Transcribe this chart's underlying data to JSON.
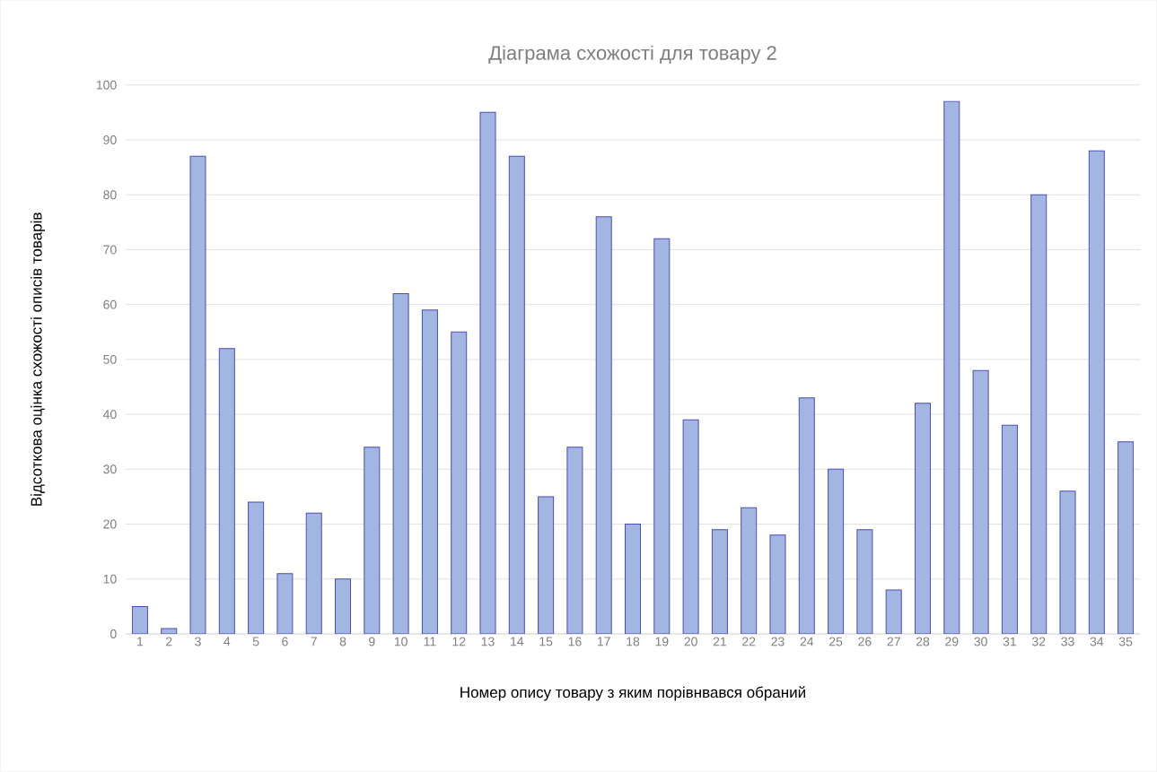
{
  "chart_data": {
    "type": "bar",
    "title": "Діаграма схожості для товару 2",
    "xlabel": "Номер опису товару з яким порівнвався обраний",
    "ylabel": "Відсоткова оцінка схожості описів товарів",
    "categories": [
      "1",
      "2",
      "3",
      "4",
      "5",
      "6",
      "7",
      "8",
      "9",
      "10",
      "11",
      "12",
      "13",
      "14",
      "15",
      "16",
      "17",
      "18",
      "19",
      "20",
      "21",
      "22",
      "23",
      "24",
      "25",
      "26",
      "27",
      "28",
      "29",
      "30",
      "31",
      "32",
      "33",
      "34",
      "35"
    ],
    "values": [
      5,
      1,
      87,
      52,
      24,
      11,
      22,
      10,
      34,
      62,
      59,
      55,
      95,
      87,
      25,
      34,
      76,
      20,
      72,
      39,
      19,
      23,
      18,
      43,
      30,
      19,
      8,
      42,
      97,
      48,
      38,
      80,
      26,
      88,
      35
    ],
    "color": "#a3b5e1",
    "ylim": [
      0,
      100
    ],
    "yticks": [
      0,
      10,
      20,
      30,
      40,
      50,
      60,
      70,
      80,
      90,
      100
    ],
    "grid": "y"
  }
}
